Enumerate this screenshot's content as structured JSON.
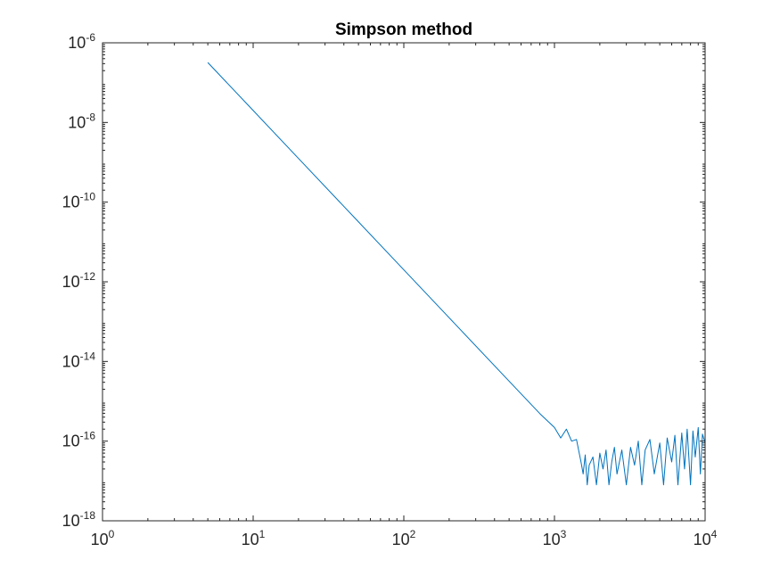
{
  "chart_data": {
    "type": "line",
    "title": "Simpson method",
    "xlabel": "",
    "ylabel": "",
    "xscale": "log",
    "yscale": "log",
    "xlim": [
      1,
      10000
    ],
    "ylim": [
      1e-18,
      1e-06
    ],
    "grid": false,
    "x_ticks": [
      {
        "base": "10",
        "exp": "0",
        "value": 1
      },
      {
        "base": "10",
        "exp": "1",
        "value": 10
      },
      {
        "base": "10",
        "exp": "2",
        "value": 100
      },
      {
        "base": "10",
        "exp": "3",
        "value": 1000
      },
      {
        "base": "10",
        "exp": "4",
        "value": 10000
      }
    ],
    "y_ticks": [
      {
        "base": "10",
        "exp": "-6",
        "value": 1e-06
      },
      {
        "base": "10",
        "exp": "-8",
        "value": 1e-08
      },
      {
        "base": "10",
        "exp": "-10",
        "value": 1e-10
      },
      {
        "base": "10",
        "exp": "-12",
        "value": 1e-12
      },
      {
        "base": "10",
        "exp": "-14",
        "value": 1e-14
      },
      {
        "base": "10",
        "exp": "-16",
        "value": 1e-16
      },
      {
        "base": "10",
        "exp": "-18",
        "value": 1e-18
      }
    ],
    "series": [
      {
        "color": "#0072bd",
        "x": [
          5,
          10,
          20,
          50,
          100,
          200,
          500,
          800,
          1000,
          1100,
          1200,
          1300,
          1400,
          1500,
          1550,
          1600,
          1650,
          1700,
          1800,
          1900,
          2000,
          2100,
          2200,
          2300,
          2400,
          2500,
          2600,
          2800,
          3000,
          3200,
          3400,
          3600,
          3800,
          4000,
          4300,
          4600,
          5000,
          5300,
          5600,
          6000,
          6300,
          6600,
          7000,
          7300,
          7600,
          8000,
          8300,
          8600,
          9000,
          9300,
          9600,
          10000
        ],
        "y": [
          3.2e-07,
          2e-08,
          1.25e-09,
          3.2e-11,
          2e-12,
          1.25e-13,
          3.2e-15,
          4.9e-16,
          2.2e-16,
          1.2e-16,
          2e-16,
          1e-16,
          1.1e-16,
          3e-17,
          1.5e-17,
          4.5e-17,
          8e-18,
          2.5e-17,
          4e-17,
          8e-18,
          5e-17,
          2e-17,
          6e-17,
          8e-18,
          3e-17,
          7e-17,
          1.5e-17,
          6e-17,
          8e-18,
          7e-17,
          2.5e-17,
          1e-16,
          8e-18,
          6e-17,
          1.1e-16,
          1.5e-17,
          9e-17,
          8e-18,
          1.2e-16,
          3e-17,
          1.4e-16,
          8e-18,
          1.6e-16,
          2e-17,
          2e-16,
          8e-18,
          1.8e-16,
          4e-17,
          2.2e-16,
          1.5e-17,
          1.5e-16,
          9e-17
        ]
      }
    ]
  }
}
